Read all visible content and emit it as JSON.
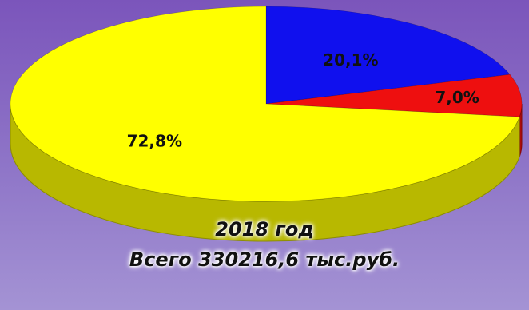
{
  "chart_data": {
    "type": "pie",
    "title": "2018 год",
    "subtitle": "Всего 330216,6 тыс.руб.",
    "slices": [
      {
        "label": "20,1%",
        "value": 20.1,
        "color": "#1010ee"
      },
      {
        "label": "7,0%",
        "value": 7.0,
        "color": "#ee0f0f"
      },
      {
        "label": "72,8%",
        "value": 72.8,
        "color": "#ffff00"
      }
    ],
    "style": "3d",
    "legend": "none"
  }
}
